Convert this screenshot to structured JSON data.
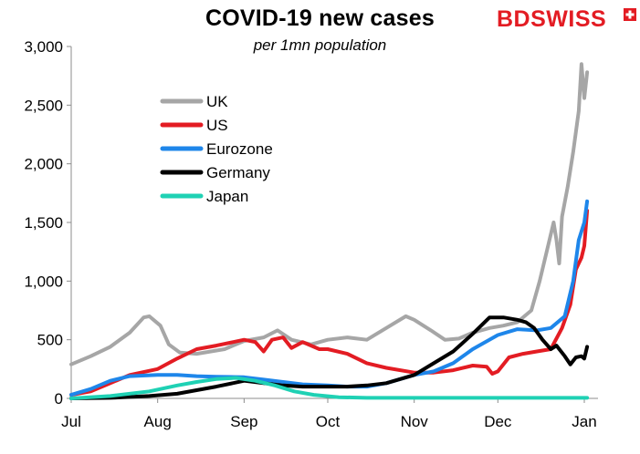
{
  "header": {
    "title": "COVID-19 new cases",
    "subtitle": "per 1mn population"
  },
  "logo": {
    "part1": "BD",
    "part2": "SWISS",
    "brand_color": "#e31c23"
  },
  "chart_data": {
    "type": "line",
    "title": "COVID-19 new cases",
    "subtitle": "per 1mn population",
    "xlabel": "",
    "ylabel": "",
    "x_ticks": [
      "Jul",
      "Aug",
      "Sep",
      "Oct",
      "Nov",
      "Dec",
      "Jan"
    ],
    "x_tick_dates": [
      "2020-07-01",
      "2020-08-01",
      "2020-09-01",
      "2020-10-01",
      "2020-11-01",
      "2020-12-01",
      "2021-01-01"
    ],
    "x_range": [
      "2020-07-01",
      "2021-01-03"
    ],
    "ylim": [
      0,
      3000
    ],
    "y_ticks": [
      0,
      500,
      1000,
      1500,
      2000,
      2500,
      3000
    ],
    "y_tick_labels": [
      "0",
      "500",
      "1,000",
      "1,500",
      "2,000",
      "2,500",
      "3,000"
    ],
    "grid": false,
    "legend_position": "upper-left",
    "series": [
      {
        "name": "UK",
        "color": "#a6a6a6",
        "points": [
          [
            "2020-07-01",
            290
          ],
          [
            "2020-07-08",
            360
          ],
          [
            "2020-07-15",
            440
          ],
          [
            "2020-07-22",
            560
          ],
          [
            "2020-07-27",
            690
          ],
          [
            "2020-07-29",
            700
          ],
          [
            "2020-08-02",
            620
          ],
          [
            "2020-08-05",
            460
          ],
          [
            "2020-08-09",
            390
          ],
          [
            "2020-08-15",
            380
          ],
          [
            "2020-08-25",
            420
          ],
          [
            "2020-09-01",
            490
          ],
          [
            "2020-09-08",
            520
          ],
          [
            "2020-09-13",
            580
          ],
          [
            "2020-09-18",
            500
          ],
          [
            "2020-09-25",
            460
          ],
          [
            "2020-10-01",
            500
          ],
          [
            "2020-10-08",
            520
          ],
          [
            "2020-10-15",
            500
          ],
          [
            "2020-10-22",
            600
          ],
          [
            "2020-10-29",
            700
          ],
          [
            "2020-11-01",
            670
          ],
          [
            "2020-11-07",
            580
          ],
          [
            "2020-11-12",
            500
          ],
          [
            "2020-11-17",
            510
          ],
          [
            "2020-11-22",
            560
          ],
          [
            "2020-11-28",
            600
          ],
          [
            "2020-12-03",
            620
          ],
          [
            "2020-12-08",
            650
          ],
          [
            "2020-12-13",
            750
          ],
          [
            "2020-12-16",
            1000
          ],
          [
            "2020-12-19",
            1300
          ],
          [
            "2020-12-21",
            1500
          ],
          [
            "2020-12-22",
            1350
          ],
          [
            "2020-12-23",
            1150
          ],
          [
            "2020-12-24",
            1550
          ],
          [
            "2020-12-26",
            1800
          ],
          [
            "2020-12-28",
            2100
          ],
          [
            "2020-12-30",
            2450
          ],
          [
            "2020-12-31",
            2850
          ],
          [
            "2021-01-01",
            2560
          ],
          [
            "2021-01-02",
            2780
          ]
        ]
      },
      {
        "name": "US",
        "color": "#e31c23",
        "points": [
          [
            "2020-07-01",
            30
          ],
          [
            "2020-07-08",
            60
          ],
          [
            "2020-07-15",
            130
          ],
          [
            "2020-07-22",
            200
          ],
          [
            "2020-08-01",
            250
          ],
          [
            "2020-08-08",
            340
          ],
          [
            "2020-08-15",
            420
          ],
          [
            "2020-08-22",
            450
          ],
          [
            "2020-09-01",
            500
          ],
          [
            "2020-09-05",
            480
          ],
          [
            "2020-09-08",
            400
          ],
          [
            "2020-09-11",
            500
          ],
          [
            "2020-09-15",
            520
          ],
          [
            "2020-09-18",
            430
          ],
          [
            "2020-09-22",
            480
          ],
          [
            "2020-09-28",
            420
          ],
          [
            "2020-10-01",
            420
          ],
          [
            "2020-10-08",
            380
          ],
          [
            "2020-10-15",
            300
          ],
          [
            "2020-10-22",
            260
          ],
          [
            "2020-11-01",
            220
          ],
          [
            "2020-11-08",
            220
          ],
          [
            "2020-11-15",
            240
          ],
          [
            "2020-11-22",
            280
          ],
          [
            "2020-11-27",
            270
          ],
          [
            "2020-11-29",
            210
          ],
          [
            "2020-12-01",
            230
          ],
          [
            "2020-12-05",
            350
          ],
          [
            "2020-12-10",
            380
          ],
          [
            "2020-12-15",
            400
          ],
          [
            "2020-12-20",
            420
          ],
          [
            "2020-12-24",
            600
          ],
          [
            "2020-12-27",
            800
          ],
          [
            "2020-12-29",
            1100
          ],
          [
            "2020-12-31",
            1200
          ],
          [
            "2021-01-01",
            1300
          ],
          [
            "2021-01-02",
            1600
          ]
        ]
      },
      {
        "name": "Eurozone",
        "color": "#1e86ea",
        "points": [
          [
            "2020-07-01",
            30
          ],
          [
            "2020-07-08",
            80
          ],
          [
            "2020-07-15",
            150
          ],
          [
            "2020-07-22",
            190
          ],
          [
            "2020-08-01",
            200
          ],
          [
            "2020-08-08",
            200
          ],
          [
            "2020-08-15",
            190
          ],
          [
            "2020-08-22",
            185
          ],
          [
            "2020-09-01",
            180
          ],
          [
            "2020-09-08",
            160
          ],
          [
            "2020-09-15",
            140
          ],
          [
            "2020-09-22",
            120
          ],
          [
            "2020-10-01",
            110
          ],
          [
            "2020-10-08",
            100
          ],
          [
            "2020-10-15",
            100
          ],
          [
            "2020-10-22",
            130
          ],
          [
            "2020-11-01",
            200
          ],
          [
            "2020-11-08",
            230
          ],
          [
            "2020-11-15",
            300
          ],
          [
            "2020-11-22",
            420
          ],
          [
            "2020-12-01",
            540
          ],
          [
            "2020-12-08",
            590
          ],
          [
            "2020-12-15",
            580
          ],
          [
            "2020-12-20",
            600
          ],
          [
            "2020-12-25",
            700
          ],
          [
            "2020-12-28",
            1000
          ],
          [
            "2020-12-30",
            1350
          ],
          [
            "2021-01-01",
            1500
          ],
          [
            "2021-01-02",
            1680
          ]
        ]
      },
      {
        "name": "Germany",
        "color": "#000000",
        "points": [
          [
            "2020-07-01",
            0
          ],
          [
            "2020-07-15",
            5
          ],
          [
            "2020-07-29",
            20
          ],
          [
            "2020-08-08",
            40
          ],
          [
            "2020-08-15",
            70
          ],
          [
            "2020-08-22",
            100
          ],
          [
            "2020-09-01",
            150
          ],
          [
            "2020-09-08",
            130
          ],
          [
            "2020-09-15",
            110
          ],
          [
            "2020-09-22",
            100
          ],
          [
            "2020-10-01",
            100
          ],
          [
            "2020-10-08",
            100
          ],
          [
            "2020-10-15",
            110
          ],
          [
            "2020-10-22",
            130
          ],
          [
            "2020-11-01",
            200
          ],
          [
            "2020-11-08",
            300
          ],
          [
            "2020-11-15",
            400
          ],
          [
            "2020-11-22",
            550
          ],
          [
            "2020-11-28",
            690
          ],
          [
            "2020-12-03",
            690
          ],
          [
            "2020-12-08",
            670
          ],
          [
            "2020-12-11",
            650
          ],
          [
            "2020-12-14",
            600
          ],
          [
            "2020-12-17",
            500
          ],
          [
            "2020-12-20",
            420
          ],
          [
            "2020-12-22",
            450
          ],
          [
            "2020-12-25",
            360
          ],
          [
            "2020-12-27",
            290
          ],
          [
            "2020-12-29",
            350
          ],
          [
            "2020-12-31",
            360
          ],
          [
            "2021-01-01",
            340
          ],
          [
            "2021-01-02",
            440
          ]
        ]
      },
      {
        "name": "Japan",
        "color": "#1fd1b4",
        "points": [
          [
            "2020-07-01",
            0
          ],
          [
            "2020-07-15",
            20
          ],
          [
            "2020-07-29",
            60
          ],
          [
            "2020-08-08",
            110
          ],
          [
            "2020-08-15",
            140
          ],
          [
            "2020-08-22",
            165
          ],
          [
            "2020-08-29",
            175
          ],
          [
            "2020-09-05",
            150
          ],
          [
            "2020-09-12",
            110
          ],
          [
            "2020-09-19",
            60
          ],
          [
            "2020-09-26",
            30
          ],
          [
            "2020-10-05",
            10
          ],
          [
            "2020-10-15",
            5
          ],
          [
            "2020-11-01",
            5
          ],
          [
            "2020-11-15",
            5
          ],
          [
            "2020-12-01",
            5
          ],
          [
            "2020-12-15",
            5
          ],
          [
            "2021-01-02",
            5
          ]
        ]
      }
    ],
    "legend_order": [
      "UK",
      "US",
      "Eurozone",
      "Germany",
      "Japan"
    ]
  }
}
